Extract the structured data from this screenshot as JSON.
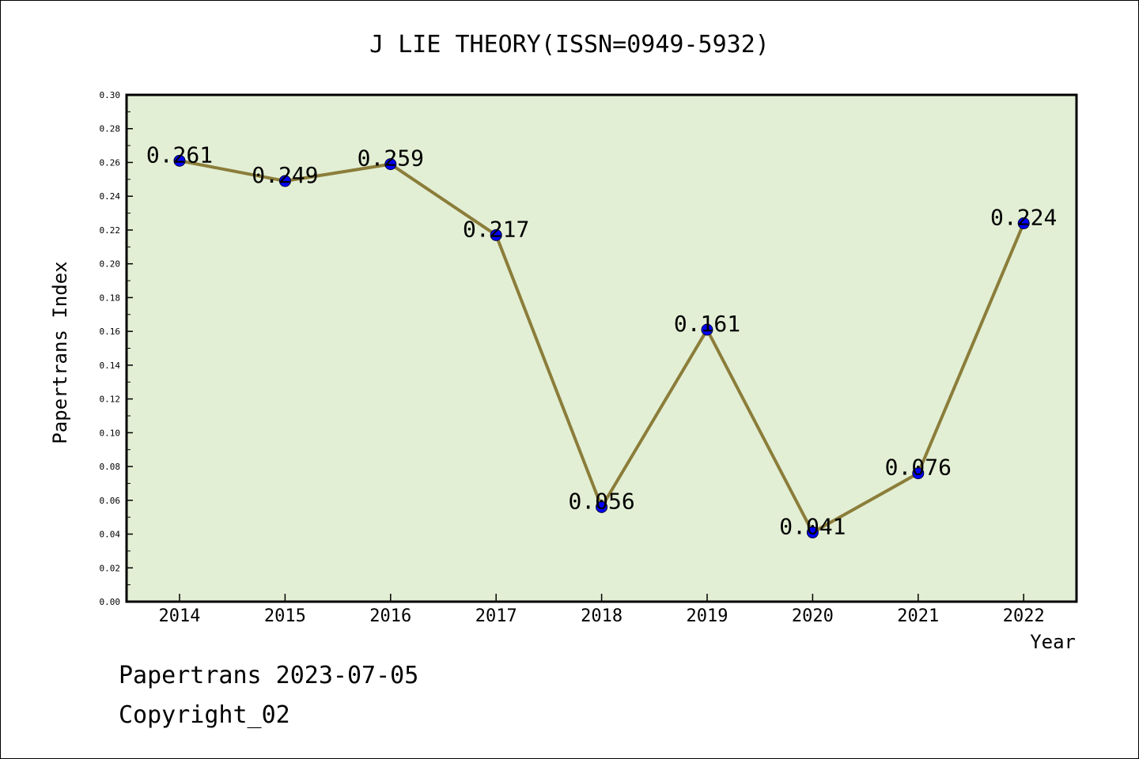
{
  "chart_data": {
    "type": "line",
    "title": "J LIE THEORY(ISSN=0949-5932)",
    "xlabel": "Year",
    "ylabel": "Papertrans Index",
    "categories": [
      "2014",
      "2015",
      "2016",
      "2017",
      "2018",
      "2019",
      "2020",
      "2021",
      "2022"
    ],
    "values": [
      0.261,
      0.249,
      0.259,
      0.217,
      0.056,
      0.161,
      0.041,
      0.076,
      0.224
    ],
    "data_labels": [
      "0.261",
      "0.249",
      "0.259",
      "0.217",
      "0.056",
      "0.161",
      "0.041",
      "0.076",
      "0.224"
    ],
    "ylim": [
      0,
      0.3
    ],
    "yticks": [
      "0.00",
      "0.02",
      "0.04",
      "0.06",
      "0.08",
      "0.10",
      "0.12",
      "0.14",
      "0.16",
      "0.18",
      "0.20",
      "0.22",
      "0.24",
      "0.26",
      "0.28",
      "0.30"
    ],
    "grid": false,
    "legend": "none",
    "colors": {
      "plot_background": "#e2efd4",
      "line": "#8b7d3a",
      "marker": "#0000ff"
    }
  },
  "footer": {
    "source": "Papertrans 2023-07-05",
    "copyright": "Copyright_02"
  }
}
